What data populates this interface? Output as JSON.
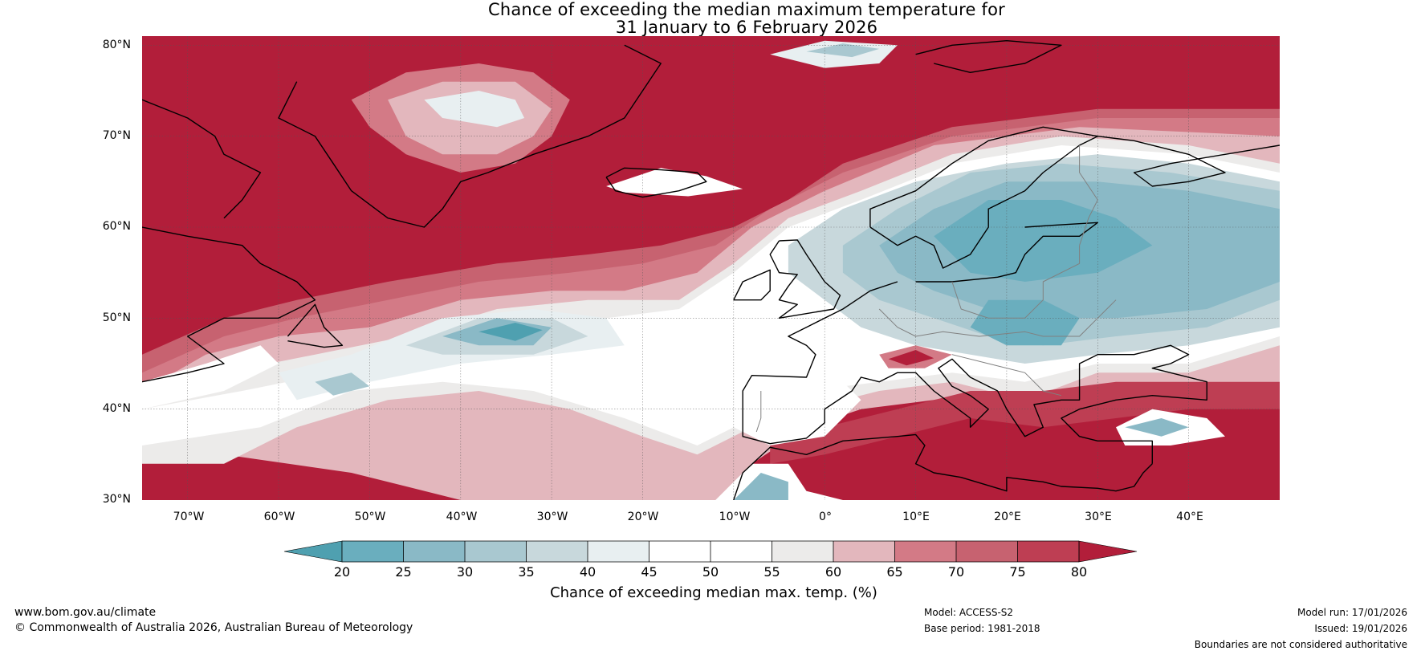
{
  "title": {
    "line1": "Chance of exceeding the median maximum temperature for",
    "line2": "31 January to 6 February 2026"
  },
  "map": {
    "latitude_labels": [
      "80°N",
      "70°N",
      "60°N",
      "50°N",
      "40°N",
      "30°N"
    ],
    "longitude_labels": [
      "70°W",
      "60°W",
      "50°W",
      "40°W",
      "30°W",
      "20°W",
      "10°W",
      "0°",
      "10°E",
      "20°E",
      "30°E",
      "40°E"
    ],
    "lat_range": [
      30,
      81
    ],
    "lon_range": [
      -75,
      50
    ],
    "lat_lines": [
      80,
      70,
      60,
      50,
      40
    ],
    "lon_lines": [
      -70,
      -60,
      -50,
      -40,
      -30,
      -20,
      -10,
      0,
      10,
      20,
      30,
      40
    ],
    "colors": {
      "below_20": "#4fa0b0",
      "b20_25": "#6aaebe",
      "b25_30": "#8ab9c6",
      "b30_35": "#a9c8d0",
      "b35_40": "#c8d8dc",
      "b40_45": "#e8eff1",
      "b45_50": "#ffffff",
      "b50_55": "#ffffff",
      "b55_60": "#ecebea",
      "b60_65": "#e3b7bd",
      "b65_70": "#d37a86",
      "b70_75": "#c76270",
      "b75_80": "#be3e53",
      "above_80": "#b21e3a",
      "coast": "#000000",
      "border": "#808080"
    }
  },
  "colorbar": {
    "ticks": [
      "20",
      "25",
      "30",
      "35",
      "40",
      "45",
      "50",
      "55",
      "60",
      "65",
      "70",
      "75",
      "80"
    ],
    "label": "Chance of exceeding median max. temp. (%)"
  },
  "footer": {
    "url": "www.bom.gov.au/climate",
    "copyright": "© Commonwealth of Australia 2026, Australian Bureau of Meteorology",
    "model": "Model: ACCESS-S2",
    "base_period": "Base period: 1981-2018",
    "model_run": "Model run: 17/01/2026",
    "issued": "Issued: 19/01/2026",
    "disclaimer": "Boundaries are not considered authoritative"
  }
}
